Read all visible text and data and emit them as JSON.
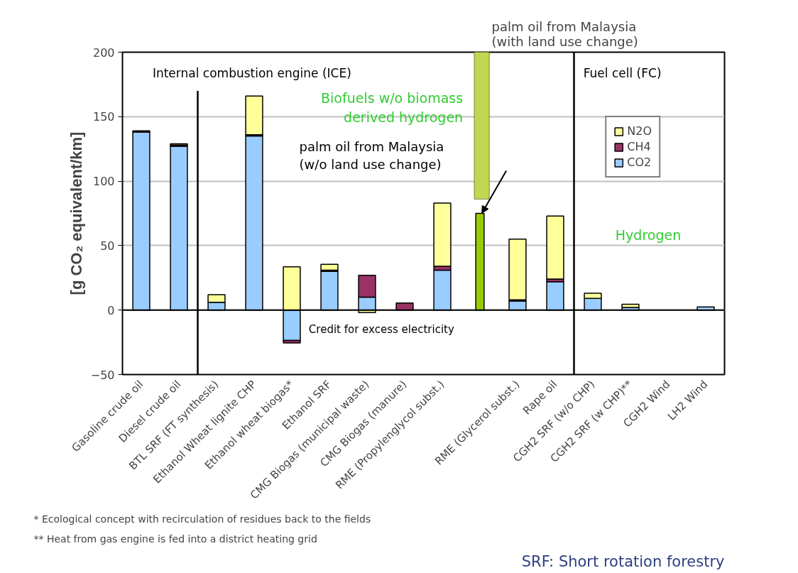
{
  "chart_data": {
    "type": "bar",
    "stacked": true,
    "ylabel": "[g CO₂ equivalent/km]",
    "categories": [
      "Gasoline crude oil",
      "Diesel crude oil",
      "BTL SRF (FT synthesis)",
      "Ethanol Wheat lignite CHP",
      "Ethanol wheat biogas*",
      "Ethanol SRF",
      "CMG Biogas (municipal waste)",
      "CMG Biogas (manure)",
      "RME (Propylenglycol subst.)",
      null,
      "RME (Glycerol subst.)",
      "Rape oil",
      "CGH2 SRF (w/o CHP)",
      "CGH2 SRF (w CHP)**",
      "CGH2 Wind",
      "LH2 Wind"
    ],
    "series": [
      {
        "name": "CO2",
        "color": "#99ccff",
        "values": [
          138,
          127,
          6,
          135,
          -23.5,
          30,
          10,
          null,
          31,
          null,
          7,
          22,
          9,
          2,
          null,
          2.5
        ]
      },
      {
        "name": "CH4",
        "color": "#993366",
        "values": [
          1,
          1,
          null,
          1,
          -2,
          1,
          17,
          5.5,
          3,
          null,
          1,
          2,
          null,
          null,
          null,
          null
        ]
      },
      {
        "name": "N2O",
        "color": "#ffff99",
        "values": [
          null,
          1,
          6,
          30,
          33.5,
          4.5,
          -2,
          null,
          49,
          null,
          47,
          49,
          4,
          2.5,
          null,
          null
        ]
      },
      {
        "color": "#99cc00",
        "values": [
          null,
          null,
          null,
          null,
          null,
          null,
          null,
          null,
          null,
          75,
          null,
          null,
          null,
          null,
          null,
          null
        ]
      }
    ],
    "ylim": [
      -50,
      200
    ],
    "yticks": [
      -50,
      0,
      50,
      100,
      150,
      200
    ],
    "grid": "y",
    "legend": "right",
    "annotations": [
      "Internal combustion engine (ICE)",
      "Fuel cell (FC)",
      "Biofuels w/o biomass\nderived hydrogen",
      "Hydrogen",
      "palm oil from Malaysia\n(w/o land use change)",
      "palm oil from Malaysia\n(with land use change)",
      "Credit for excess electricity",
      "* Ecological concept with recirculation of residues back to the fields",
      "** Heat from gas engine is fed into a district heating grid",
      "SRF: Short rotation forestry"
    ]
  }
}
